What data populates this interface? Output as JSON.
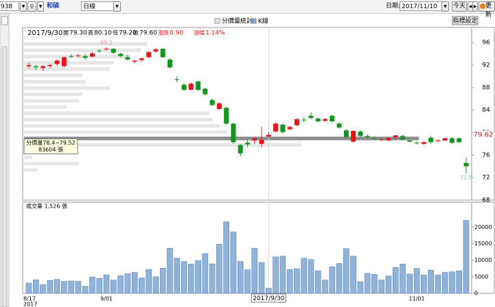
{
  "toolbar": {
    "code": "938",
    "name": "和碩",
    "period": "日線",
    "date_label": "日期:",
    "date": "2017/11/10",
    "today": "今天",
    "refresh": "更新",
    "settings": "指標設定"
  },
  "chart_data": [
    {
      "type": "candlestick",
      "name": "K線",
      "legend_color": "#7fa7d3",
      "header": {
        "date": "2017/9/30",
        "items": [
          {
            "label": "開",
            "value": "79.30",
            "color": "#000000"
          },
          {
            "label": "高",
            "value": "80.10",
            "color": "#000000"
          },
          {
            "label": "低",
            "value": "79.20",
            "color": "#000000"
          },
          {
            "label": "收",
            "value": "79.60",
            "color": "#000000"
          },
          {
            "label": "漲跌",
            "value": "0.90",
            "color": "#e8141b"
          },
          {
            "label": "漲幅",
            "value": "1.14%",
            "color": "#e8141b"
          }
        ]
      },
      "categories": [
        "8/17",
        null,
        null,
        null,
        null,
        null,
        null,
        null,
        null,
        null,
        null,
        "9/01",
        null,
        null,
        null,
        null,
        null,
        null,
        null,
        null,
        null,
        null,
        null,
        null,
        null,
        null,
        null,
        null,
        null,
        null,
        null,
        null,
        null,
        null,
        "2017/9/30",
        null,
        null,
        null,
        null,
        null,
        null,
        null,
        null,
        null,
        null,
        null,
        null,
        null,
        null,
        null,
        null,
        null,
        null,
        null,
        null,
        "11/01",
        null,
        null,
        null,
        null,
        null,
        null,
        null
      ],
      "x_year": "2017",
      "selected": 34,
      "open": [
        91.8,
        91.8,
        91.5,
        91.8,
        92.2,
        91.8,
        93.6,
        93.6,
        93.6,
        93.5,
        94.6,
        94.8,
        94.9,
        94.0,
        93.4,
        92.6,
        92.9,
        93.4,
        94.4,
        94.9,
        93.0,
        89.5,
        88.5,
        87.6,
        89.1,
        87.8,
        85.8,
        84.2,
        84.4,
        81.6,
        77.8,
        78.2,
        78.6,
        78.0,
        79.3,
        80.2,
        81.4,
        80.6,
        81.3,
        82.3,
        83.0,
        82.5,
        82.1,
        83.0,
        81.6,
        80.4,
        78.4,
        80.2,
        79.4,
        79.0,
        78.7,
        78.6,
        79.2,
        79.4,
        78.6,
        78.2,
        78.0,
        79.1,
        78.5,
        78.6,
        79.0,
        79.0,
        74.6
      ],
      "high": [
        92.4,
        92.0,
        92.0,
        92.2,
        93.0,
        93.5,
        93.9,
        94.0,
        94.0,
        94.3,
        94.8,
        95.2,
        95.0,
        94.2,
        93.8,
        92.9,
        93.3,
        94.5,
        95.0,
        95.0,
        93.2,
        90.0,
        88.8,
        88.9,
        89.2,
        88.0,
        86.1,
        85.4,
        84.6,
        81.8,
        78.0,
        78.8,
        79.2,
        81.0,
        80.1,
        81.8,
        81.6,
        81.2,
        82.5,
        82.8,
        83.6,
        82.7,
        82.6,
        83.2,
        81.8,
        80.6,
        80.4,
        80.4,
        79.7,
        79.4,
        79.1,
        79.2,
        79.6,
        79.6,
        78.8,
        78.4,
        78.4,
        79.4,
        78.8,
        79.1,
        79.2,
        79.2,
        75.6
      ],
      "low": [
        91.4,
        91.2,
        91.0,
        91.5,
        91.8,
        91.6,
        93.3,
        93.4,
        92.9,
        93.4,
        94.2,
        94.6,
        94.0,
        93.4,
        92.8,
        92.3,
        92.6,
        93.2,
        94.2,
        93.3,
        91.4,
        88.9,
        87.4,
        87.6,
        87.4,
        86.6,
        84.7,
        84.0,
        81.4,
        78.0,
        75.8,
        77.4,
        78.0,
        77.4,
        79.2,
        80.0,
        79.8,
        80.4,
        81.2,
        81.8,
        82.4,
        81.8,
        81.9,
        81.8,
        80.7,
        79.0,
        78.2,
        79.2,
        78.9,
        78.7,
        78.5,
        78.4,
        78.8,
        78.6,
        78.2,
        77.9,
        77.8,
        78.0,
        78.3,
        78.5,
        78.0,
        78.1,
        72.8
      ],
      "close": [
        92.0,
        91.6,
        91.8,
        92.0,
        92.8,
        93.4,
        93.5,
        93.7,
        93.3,
        94.1,
        94.5,
        94.9,
        94.2,
        93.6,
        93.0,
        92.8,
        93.2,
        94.3,
        94.8,
        93.4,
        91.6,
        89.4,
        87.6,
        88.7,
        87.6,
        86.8,
        84.9,
        85.2,
        81.6,
        78.3,
        76.3,
        77.9,
        79.0,
        78.7,
        79.6,
        81.6,
        80.1,
        81.0,
        82.4,
        82.2,
        82.6,
        82.0,
        82.4,
        82.0,
        80.9,
        79.2,
        80.3,
        79.4,
        79.2,
        78.9,
        78.8,
        79.0,
        79.5,
        78.8,
        78.4,
        78.1,
        78.3,
        78.3,
        78.6,
        79.0,
        78.2,
        78.3,
        74.0
      ],
      "up_color": "#e8141b",
      "down_color": "#14961e",
      "high_mark": 95.2,
      "low_mark": 72.8,
      "price_mark": 79.62,
      "ylim": [
        68,
        98.7
      ],
      "yticks": [
        68,
        72,
        76,
        80,
        84,
        88,
        92,
        96
      ],
      "profile": {
        "name": "分價量統計",
        "color": "#e6e6e6",
        "highlight_color": "#8c8c8c",
        "highlight": 5,
        "bins": [
          72.8,
          73.92,
          75.04,
          76.16,
          77.28,
          78.4,
          79.52,
          80.64,
          81.76,
          82.88,
          84,
          85.12,
          86.24,
          87.36,
          88.48,
          89.6,
          90.72,
          91.84,
          92.96,
          94.08,
          95.2,
          96.32
        ],
        "values": [
          2910,
          11630,
          1740,
          3630,
          58890,
          83604,
          42890,
          41440,
          39980,
          39260,
          9010,
          11630,
          12360,
          18170,
          13090,
          12360,
          18170,
          18900,
          22540,
          24720,
          26170
        ],
        "tooltip": [
          "分價量78.4~79.52",
          "83604 張"
        ]
      }
    },
    {
      "type": "bar",
      "title": "成交量 1,526 張",
      "color": "#8fb3da",
      "values": [
        3100,
        4100,
        2600,
        3900,
        4200,
        3600,
        3700,
        3600,
        2100,
        4900,
        4500,
        5600,
        4000,
        5300,
        5900,
        6300,
        4600,
        7200,
        5000,
        7600,
        13600,
        10600,
        9600,
        8800,
        9900,
        12000,
        8900,
        14800,
        21600,
        18500,
        9600,
        7100,
        13600,
        9300,
        1526,
        11000,
        11200,
        7200,
        7400,
        10600,
        10200,
        6800,
        4000,
        8000,
        9000,
        13500,
        11200,
        3500,
        6000,
        5700,
        4000,
        5200,
        7800,
        8800,
        5800,
        7500,
        5500,
        7000,
        5500,
        6300,
        6500,
        6800,
        22000
      ],
      "ylim": [
        0,
        27500
      ],
      "yticks": [
        0,
        5000,
        10000,
        15000,
        20000
      ]
    }
  ]
}
